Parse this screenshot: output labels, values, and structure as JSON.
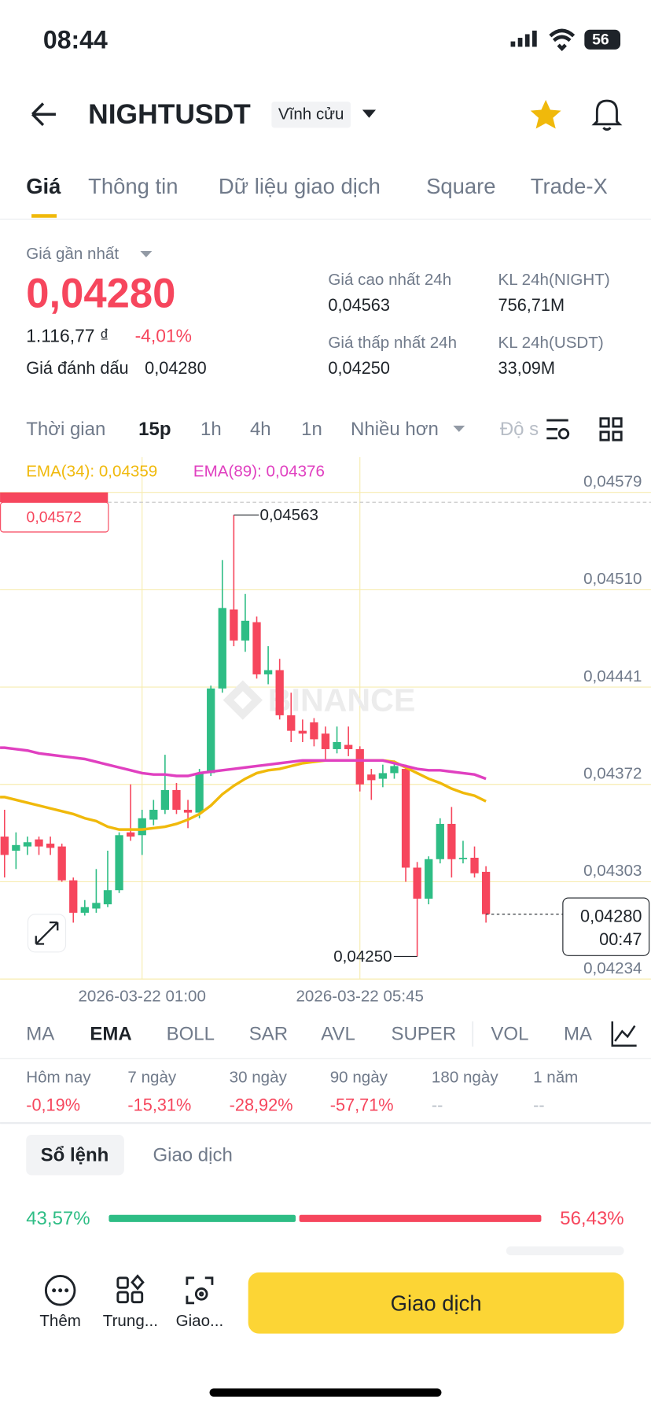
{
  "status": {
    "time": "08:44",
    "battery": "56"
  },
  "header": {
    "title": "NIGHTUSDT",
    "badge": "Vĩnh cửu"
  },
  "tabs": [
    "Giá",
    "Thông tin",
    "Dữ liệu giao dịch",
    "Square",
    "Trade-X"
  ],
  "price": {
    "label": "Giá gần nhất",
    "last": "0,04280",
    "fiat": "1.116,77 ₫",
    "change": "-4,01%",
    "mark_label": "Giá đánh dấu",
    "mark": "0,04280"
  },
  "stats": [
    {
      "label": "Giá cao nhất 24h",
      "value": "0,04563"
    },
    {
      "label": "KL 24h(NIGHT)",
      "value": "756,71M"
    },
    {
      "label": "Giá thấp nhất 24h",
      "value": "0,04250"
    },
    {
      "label": "KL 24h(USDT)",
      "value": "33,09M"
    }
  ],
  "intervals": [
    "Thời gian",
    "15p",
    "1h",
    "4h",
    "1n",
    "Nhiều hơn",
    "Độ s"
  ],
  "chart": {
    "type": "candlestick",
    "watermark": "BINANCE",
    "up_color": "#2ebd85",
    "down_color": "#f6465d",
    "ylim": [
      0.04234,
      0.04604
    ],
    "yticks": [
      {
        "value": 0.04579,
        "label": "0,04579"
      },
      {
        "value": 0.0451,
        "label": "0,04510"
      },
      {
        "value": 0.04441,
        "label": "0,04441"
      },
      {
        "value": 0.04372,
        "label": "0,04372"
      },
      {
        "value": 0.04303,
        "label": "0,04303"
      },
      {
        "value": 0.04234,
        "label": "0,04234"
      }
    ],
    "categories": [
      null,
      null,
      null,
      null,
      null,
      null,
      null,
      null,
      null,
      null,
      null,
      null,
      "2026-03-22 01:00",
      null,
      null,
      null,
      null,
      null,
      null,
      null,
      null,
      null,
      null,
      null,
      null,
      null,
      null,
      null,
      null,
      null,
      null,
      "2026-03-22 05:45",
      null,
      null,
      null,
      null,
      null,
      null,
      null,
      null,
      null,
      null,
      null
    ],
    "open": [
      0.04335,
      0.04325,
      0.04328,
      0.04333,
      0.0433,
      0.04328,
      0.04304,
      0.04281,
      0.04284,
      0.04287,
      0.04297,
      0.04338,
      0.04336,
      0.04347,
      0.04354,
      0.04368,
      0.04354,
      0.04352,
      0.0438,
      0.0444,
      0.04496,
      0.04474,
      0.04487,
      0.0445,
      0.04453,
      0.04421,
      0.0441,
      0.04416,
      0.04408,
      0.04397,
      0.044,
      0.04397,
      0.04379,
      0.04376,
      0.0438,
      0.04383,
      0.04313,
      0.04291,
      0.04319,
      0.04344,
      0.04319,
      0.0432,
      0.0431
    ],
    "high": [
      0.04354,
      0.04338,
      0.04335,
      0.04335,
      0.04335,
      0.0433,
      0.04306,
      0.0429,
      0.04312,
      0.04325,
      0.04338,
      0.04372,
      0.04354,
      0.04361,
      0.04393,
      0.04373,
      0.04361,
      0.04383,
      0.04442,
      0.04531,
      0.04563,
      0.04507,
      0.04491,
      0.0447,
      0.04461,
      0.04437,
      0.04418,
      0.04419,
      0.04413,
      0.04413,
      0.04413,
      0.04399,
      0.04383,
      0.04386,
      0.04389,
      0.04386,
      0.04317,
      0.04321,
      0.04348,
      0.04356,
      0.04332,
      0.04328,
      0.04314
    ],
    "low": [
      0.04306,
      0.04312,
      0.04322,
      0.04322,
      0.04322,
      0.04303,
      0.04274,
      0.04279,
      0.04281,
      0.04285,
      0.04295,
      0.04332,
      0.04322,
      0.04343,
      0.04351,
      0.04351,
      0.04341,
      0.04348,
      0.04378,
      0.04437,
      0.0447,
      0.04466,
      0.04447,
      0.04443,
      0.04418,
      0.04402,
      0.04402,
      0.04399,
      0.04389,
      0.04394,
      0.04392,
      0.04367,
      0.04361,
      0.0437,
      0.04376,
      0.04303,
      0.0425,
      0.04287,
      0.04316,
      0.04306,
      0.04316,
      0.04306,
      0.04274
    ],
    "close": [
      0.04322,
      0.04329,
      0.04331,
      0.04328,
      0.04327,
      0.04304,
      0.04281,
      0.04285,
      0.04288,
      0.04297,
      0.04336,
      0.04335,
      0.04348,
      0.04354,
      0.04368,
      0.04354,
      0.04352,
      0.0438,
      0.0444,
      0.04497,
      0.04474,
      0.04488,
      0.0445,
      0.04453,
      0.04421,
      0.0441,
      0.04408,
      0.04404,
      0.04397,
      0.04402,
      0.04397,
      0.04372,
      0.04375,
      0.0438,
      0.04385,
      0.04313,
      0.04291,
      0.04319,
      0.04344,
      0.04319,
      0.0432,
      0.04309,
      0.0428
    ],
    "ema": [
      {
        "label": "EMA(34): 0,04359",
        "color": "#f0b90b",
        "values": [
          0.04363,
          0.04361,
          0.04359,
          0.04357,
          0.04355,
          0.04353,
          0.04351,
          0.04348,
          0.04346,
          0.04342,
          0.0434,
          0.0434,
          0.0434,
          0.04341,
          0.04342,
          0.04344,
          0.04347,
          0.04351,
          0.04357,
          0.04365,
          0.04371,
          0.04376,
          0.0438,
          0.04382,
          0.04383,
          0.04385,
          0.04387,
          0.04388,
          0.04389,
          0.04389,
          0.04389,
          0.04389,
          0.04389,
          0.04389,
          0.04388,
          0.04384,
          0.0438,
          0.04376,
          0.04373,
          0.04369,
          0.04366,
          0.04364,
          0.0436
        ]
      },
      {
        "label": "EMA(89): 0,04376",
        "color": "#e040c0",
        "values": [
          0.04398,
          0.04397,
          0.04396,
          0.04394,
          0.04393,
          0.04392,
          0.04391,
          0.0439,
          0.04388,
          0.04386,
          0.04384,
          0.04382,
          0.0438,
          0.04379,
          0.04379,
          0.04378,
          0.04378,
          0.0438,
          0.04381,
          0.04382,
          0.04383,
          0.04384,
          0.04385,
          0.04386,
          0.04387,
          0.04388,
          0.04389,
          0.04389,
          0.04389,
          0.04389,
          0.04389,
          0.04389,
          0.04389,
          0.04389,
          0.04387,
          0.04385,
          0.04383,
          0.04382,
          0.04382,
          0.04381,
          0.0438,
          0.04379,
          0.04376
        ]
      }
    ],
    "high_label": {
      "value": 0.04563,
      "label": "0,04563"
    },
    "low_label": {
      "value": 0.0425,
      "label": "0,04250"
    },
    "last_price": {
      "value": 0.0428,
      "label": "0,04280"
    },
    "countdown": "00:47",
    "order_line": {
      "value": 0.04572,
      "label": "0,04572"
    }
  },
  "indicators": [
    "MA",
    "EMA",
    "BOLL",
    "SAR",
    "AVL",
    "SUPER",
    "VOL",
    "MA"
  ],
  "performance": [
    {
      "label": "Hôm nay",
      "value": "-0,19%"
    },
    {
      "label": "7 ngày",
      "value": "-15,31%"
    },
    {
      "label": "30 ngày",
      "value": "-28,92%"
    },
    {
      "label": "90 ngày",
      "value": "-57,71%"
    },
    {
      "label": "180 ngày",
      "value": "--"
    },
    {
      "label": "1 năm",
      "value": "--"
    }
  ],
  "book_tabs": [
    "Sổ lệnh",
    "Giao dịch"
  ],
  "ratio": {
    "values": [
      43.57,
      56.43
    ],
    "value_labels": [
      "43,57%",
      "56,43%"
    ],
    "colors": [
      "#2ebd85",
      "#f6465d"
    ]
  },
  "nav": [
    "Thêm",
    "Trung...",
    "Giao..."
  ],
  "button": "Giao dịch"
}
